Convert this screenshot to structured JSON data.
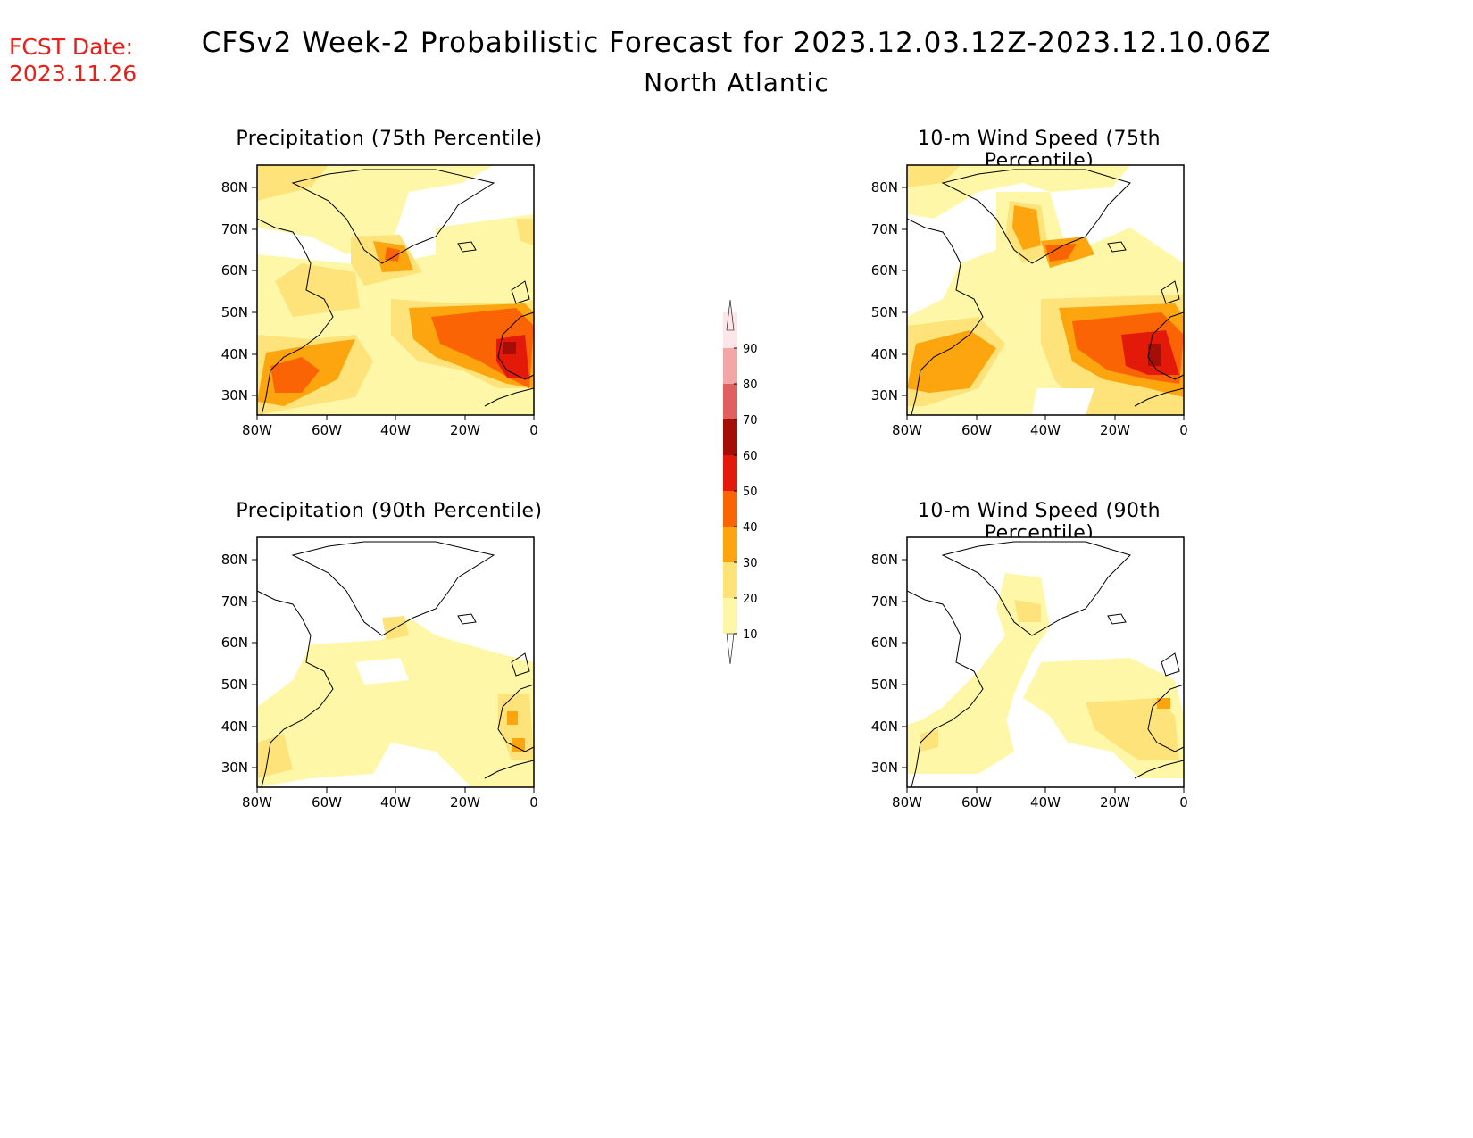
{
  "header": {
    "fcst_label": "FCST Date:",
    "fcst_date": "2023.11.26",
    "title": "CFSv2 Week-2 Probabilistic Forecast for 2023.12.03.12Z-2023.12.10.06Z",
    "subtitle": "North Atlantic"
  },
  "axes": {
    "lat_ticks": [
      "80N",
      "70N",
      "60N",
      "50N",
      "40N",
      "30N"
    ],
    "lon_ticks": [
      "80W",
      "60W",
      "40W",
      "20W",
      "0"
    ]
  },
  "panels": [
    {
      "id": "precip75",
      "title": "Precipitation (75th Percentile)"
    },
    {
      "id": "wind75",
      "title": "10-m Wind Speed (75th Percentile)"
    },
    {
      "id": "precip90",
      "title": "Precipitation (90th Percentile)"
    },
    {
      "id": "wind90",
      "title": "10-m Wind Speed (90th Percentile)"
    }
  ],
  "colorbar": {
    "levels": [
      "10",
      "20",
      "30",
      "40",
      "50",
      "60",
      "70",
      "80",
      "90"
    ],
    "colors": [
      "#fff7a8",
      "#fde37a",
      "#fca50e",
      "#fb6405",
      "#e31a0a",
      "#a50e06",
      "#e06060",
      "#f3a6a6",
      "#fde6ea"
    ]
  }
}
